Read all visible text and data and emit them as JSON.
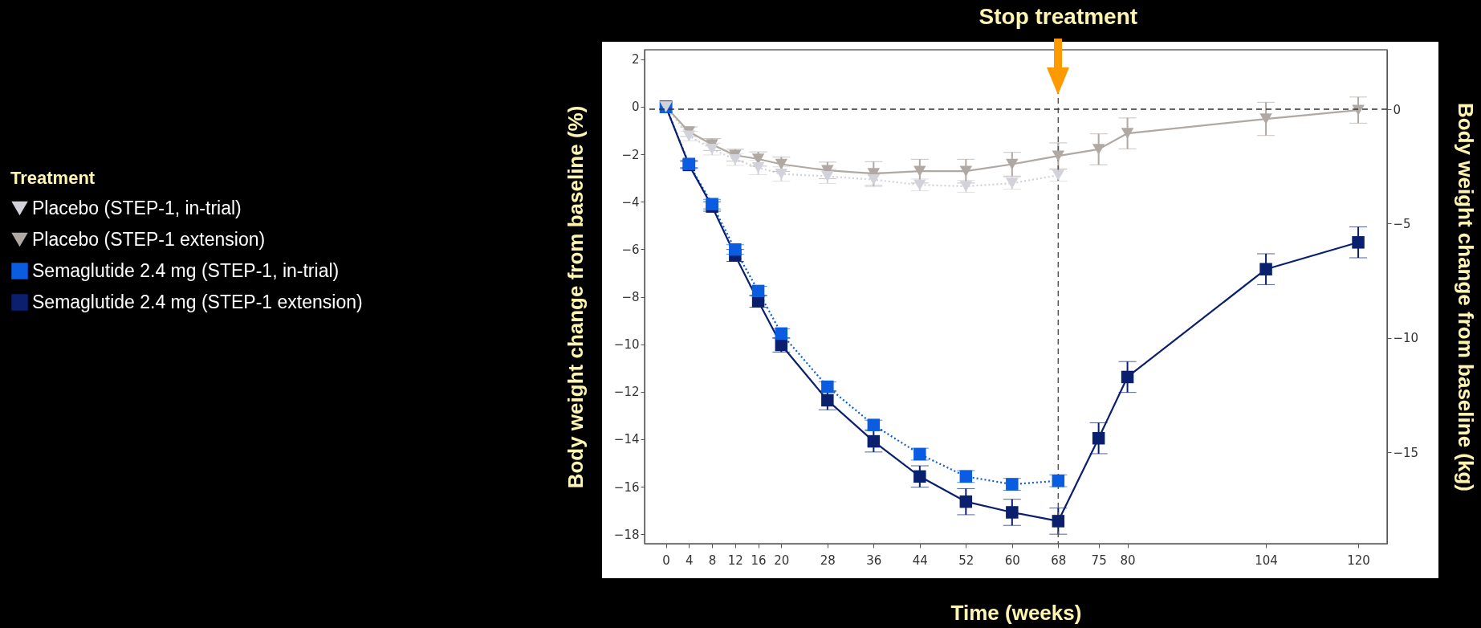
{
  "chart_data": {
    "type": "line",
    "xlabel": "Time (weeks)",
    "ylabel": "Body weight change from baseline (%)",
    "y2label": "Body weight change from baseline (kg)",
    "legend_title": "Treatment",
    "legend": "left",
    "xlim": [
      -3.7,
      125
    ],
    "xticks": [
      0,
      4,
      8,
      12,
      16,
      20,
      28,
      36,
      44,
      52,
      60,
      68,
      75,
      80,
      104,
      120
    ],
    "ylim": [
      -18.4,
      2.4
    ],
    "yticks": [
      2,
      0,
      -2,
      -4,
      -6,
      -8,
      -10,
      -12,
      -14,
      -16,
      -18
    ],
    "y2lim": [
      -19.0,
      2.6
    ],
    "y2ticks": [
      0,
      -5,
      -10,
      -15
    ],
    "grid": false,
    "ref_lines": [
      {
        "axis": "y2",
        "value": 0,
        "label": null,
        "color": "#333333",
        "line_style": "dashed"
      },
      {
        "axis": "x",
        "value": 68,
        "label": "Stop treatment",
        "color": "#555555",
        "line_style": "dashed"
      }
    ],
    "series": [
      {
        "name": "Placebo (STEP-1, in-trial)",
        "color": "#d2d2da",
        "marker": "triangle",
        "line_style": "dotted",
        "x": [
          0,
          4,
          8,
          12,
          16,
          20,
          28,
          36,
          44,
          52,
          60,
          68
        ],
        "values": [
          0,
          -1.23,
          -1.78,
          -2.22,
          -2.56,
          -2.83,
          -2.93,
          -3.07,
          -3.29,
          -3.35,
          -3.22,
          -2.88
        ],
        "errors": [
          null,
          0.2,
          0.25,
          0.25,
          0.3,
          0.3,
          0.3,
          0.3,
          0.25,
          0.25,
          0.25,
          0.25
        ]
      },
      {
        "name": "Placebo (STEP-1 extension)",
        "color": "#b0a8a2",
        "marker": "triangle",
        "line_style": "solid",
        "x": [
          0,
          4,
          8,
          12,
          16,
          20,
          28,
          36,
          44,
          52,
          60,
          68,
          75,
          80,
          104,
          120
        ],
        "values": [
          0,
          -1.05,
          -1.59,
          -2.04,
          -2.2,
          -2.42,
          -2.68,
          -2.81,
          -2.71,
          -2.71,
          -2.42,
          -2.07,
          -1.79,
          -1.12,
          -0.51,
          -0.14
        ],
        "errors": [
          null,
          0.2,
          0.25,
          0.25,
          0.3,
          0.3,
          0.35,
          0.5,
          0.5,
          0.5,
          0.5,
          0.55,
          0.65,
          0.65,
          0.7,
          0.55
        ]
      },
      {
        "name": "Semaglutide 2.4 mg (STEP-1, in-trial)",
        "color": "#0a5ce0",
        "marker": "square",
        "line_style": "dotted",
        "x": [
          0,
          4,
          8,
          12,
          16,
          20,
          28,
          36,
          44,
          52,
          60,
          68
        ],
        "values": [
          0,
          -2.41,
          -4.1,
          -6.01,
          -7.76,
          -9.55,
          -11.79,
          -13.4,
          -14.63,
          -15.57,
          -15.9,
          -15.75
        ],
        "errors": [
          null,
          0.15,
          0.2,
          0.2,
          0.2,
          0.2,
          0.2,
          0.2,
          0.25,
          0.25,
          0.25,
          0.25
        ]
      },
      {
        "name": "Semaglutide 2.4 mg (STEP-1 extension)",
        "color": "#0a1f6e",
        "marker": "square",
        "line_style": "solid",
        "x": [
          0,
          4,
          8,
          12,
          16,
          20,
          28,
          36,
          44,
          52,
          60,
          68,
          75,
          80,
          104,
          120
        ],
        "values": [
          0,
          -2.45,
          -4.2,
          -6.26,
          -8.19,
          -10.03,
          -12.36,
          -14.09,
          -15.57,
          -16.63,
          -17.08,
          -17.45,
          -13.96,
          -11.38,
          -6.84,
          -5.71
        ],
        "errors": [
          null,
          0.15,
          0.2,
          0.25,
          0.25,
          0.3,
          0.4,
          0.45,
          0.45,
          0.55,
          0.55,
          0.55,
          0.65,
          0.65,
          0.65,
          0.65
        ]
      }
    ]
  }
}
